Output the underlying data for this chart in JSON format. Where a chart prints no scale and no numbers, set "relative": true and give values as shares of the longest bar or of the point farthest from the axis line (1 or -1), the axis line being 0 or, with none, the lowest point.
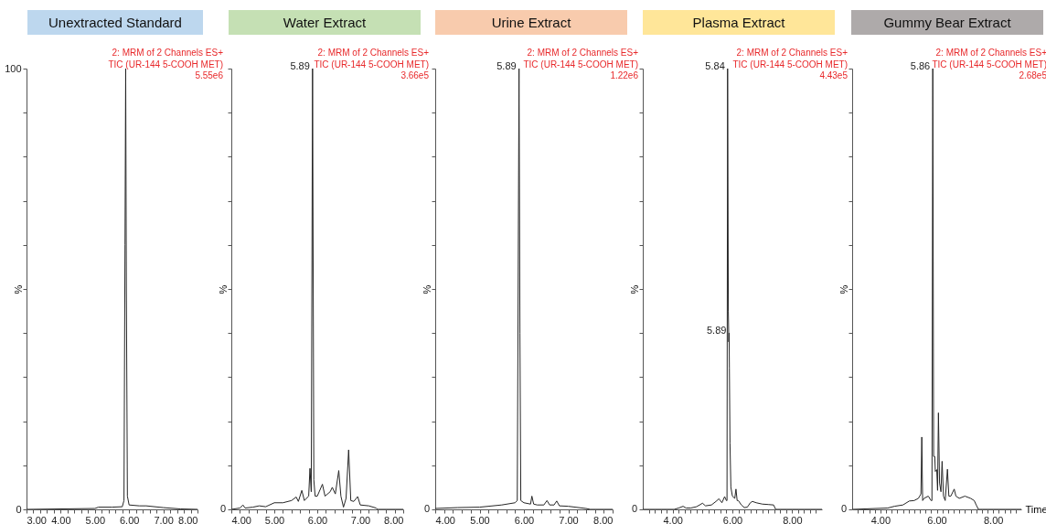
{
  "chart_data": [
    {
      "type": "line",
      "title": "Unextracted Standard",
      "ylabel": "%",
      "xlim": [
        3,
        8
      ],
      "ylim": [
        0,
        100
      ],
      "xticks": [
        {
          "value": 3,
          "label": "3.00"
        },
        {
          "value": 3.2,
          "label": null
        },
        {
          "value": 3.4,
          "label": null
        },
        {
          "value": 3.6,
          "label": null
        },
        {
          "value": 3.8,
          "label": null
        },
        {
          "value": 4,
          "label": "4.00"
        },
        {
          "value": 4.2,
          "label": null
        },
        {
          "value": 4.4,
          "label": null
        },
        {
          "value": 4.6,
          "label": null
        },
        {
          "value": 4.8,
          "label": null
        },
        {
          "value": 5,
          "label": "5.00"
        },
        {
          "value": 5.2,
          "label": null
        },
        {
          "value": 5.4,
          "label": null
        },
        {
          "value": 5.6,
          "label": null
        },
        {
          "value": 5.8,
          "label": null
        },
        {
          "value": 6,
          "label": "6.00"
        },
        {
          "value": 6.2,
          "label": null
        },
        {
          "value": 6.4,
          "label": null
        },
        {
          "value": 6.6,
          "label": null
        },
        {
          "value": 6.8,
          "label": null
        },
        {
          "value": 7,
          "label": "7.00"
        },
        {
          "value": 7.2,
          "label": null
        },
        {
          "value": 7.4,
          "label": null
        },
        {
          "value": 7.6,
          "label": null
        },
        {
          "value": 7.8,
          "label": null
        },
        {
          "value": 8,
          "label": "8.00"
        }
      ],
      "yticks": [
        0,
        {
          "value": 10,
          "label": null
        },
        {
          "value": 20,
          "label": null
        },
        {
          "value": 30,
          "label": null
        },
        {
          "value": 40,
          "label": null
        },
        {
          "value": 50,
          "label": null
        },
        {
          "value": 60,
          "label": null
        },
        {
          "value": 70,
          "label": null
        },
        {
          "value": 80,
          "label": null
        },
        {
          "value": 90,
          "label": null
        },
        100
      ],
      "annotations": [
        "2: MRM of 2 Channels ES+",
        "TIC (UR-144 5-COOH MET)",
        "5.55e6"
      ],
      "series": [
        {
          "color": "#262626",
          "x": [
            3.0,
            5.0,
            5.1,
            5.5,
            5.8,
            5.85,
            5.88,
            5.9,
            5.92,
            5.95,
            6.0,
            6.3,
            6.5,
            7.0,
            7.5,
            8.0
          ],
          "values": [
            0,
            0.2,
            0.5,
            0.5,
            0.6,
            2,
            60,
            100,
            50,
            3,
            1.0,
            0.8,
            0.8,
            0.4,
            0.1,
            0
          ]
        }
      ]
    },
    {
      "type": "line",
      "title": "Water Extract",
      "ylabel": "%",
      "relative": true,
      "xlim": [
        4,
        8
      ],
      "xticks": [
        {
          "value": 4,
          "label": "4.00"
        },
        {
          "value": 4.2,
          "label": null
        },
        {
          "value": 4.4,
          "label": null
        },
        {
          "value": 4.6,
          "label": null
        },
        {
          "value": 4.8,
          "label": null
        },
        {
          "value": 5,
          "label": "5.00"
        },
        {
          "value": 5.2,
          "label": null
        },
        {
          "value": 5.4,
          "label": null
        },
        {
          "value": 5.6,
          "label": null
        },
        {
          "value": 5.8,
          "label": null
        },
        {
          "value": 6,
          "label": "6.00"
        },
        {
          "value": 6.2,
          "label": null
        },
        {
          "value": 6.4,
          "label": null
        },
        {
          "value": 6.6,
          "label": null
        },
        {
          "value": 6.8,
          "label": null
        },
        {
          "value": 7,
          "label": "7.00"
        },
        {
          "value": 7.2,
          "label": null
        },
        {
          "value": 7.4,
          "label": null
        },
        {
          "value": 7.6,
          "label": null
        },
        {
          "value": 7.8,
          "label": null
        },
        {
          "value": 8,
          "label": "8.00"
        }
      ],
      "annotations": [
        "2: MRM of 2 Channels ES+",
        "TIC (UR-144 5-COOH MET)",
        "3.66e5",
        "0",
        {
          "text": "5.89",
          "x": 5.89,
          "y": 1
        }
      ],
      "series": [
        {
          "color": "#262626",
          "x": [
            4.0,
            4.2,
            4.27,
            4.32,
            4.5,
            4.65,
            4.8,
            5.0,
            5.2,
            5.4,
            5.51,
            5.56,
            5.64,
            5.7,
            5.8,
            5.83,
            5.86,
            5.89,
            5.92,
            5.95,
            6.0,
            6.12,
            6.18,
            6.3,
            6.35,
            6.42,
            6.5,
            6.55,
            6.61,
            6.67,
            6.73,
            6.78,
            6.85,
            6.94,
            7.0,
            7.2,
            7.37,
            7.4,
            8.0
          ],
          "values": [
            0,
            0.003,
            0.01,
            0.003,
            0.005,
            0.008,
            0.006,
            0.015,
            0.015,
            0.02,
            0.028,
            0.018,
            0.043,
            0.02,
            0.03,
            0.093,
            0.04,
            1,
            0.067,
            0.03,
            0.03,
            0.057,
            0.03,
            0.04,
            0.05,
            0.035,
            0.088,
            0.03,
            0.005,
            0.025,
            0.135,
            0.02,
            0.018,
            0.029,
            0.01,
            0.008,
            0.003,
            0,
            0
          ]
        }
      ]
    },
    {
      "type": "line",
      "title": "Urine Extract",
      "ylabel": "%",
      "relative": true,
      "xlim": [
        4,
        8
      ],
      "xticks": [
        {
          "value": 4,
          "label": "4.00"
        },
        {
          "value": 4.2,
          "label": null
        },
        {
          "value": 4.4,
          "label": null
        },
        {
          "value": 4.6,
          "label": null
        },
        {
          "value": 4.8,
          "label": null
        },
        {
          "value": 5,
          "label": "5.00"
        },
        {
          "value": 5.2,
          "label": null
        },
        {
          "value": 5.4,
          "label": null
        },
        {
          "value": 5.6,
          "label": null
        },
        {
          "value": 5.8,
          "label": null
        },
        {
          "value": 6,
          "label": "6.00"
        },
        {
          "value": 6.2,
          "label": null
        },
        {
          "value": 6.4,
          "label": null
        },
        {
          "value": 6.6,
          "label": null
        },
        {
          "value": 6.8,
          "label": null
        },
        {
          "value": 7,
          "label": "7.00"
        },
        {
          "value": 7.2,
          "label": null
        },
        {
          "value": 7.4,
          "label": null
        },
        {
          "value": 7.6,
          "label": null
        },
        {
          "value": 7.8,
          "label": null
        },
        {
          "value": 8,
          "label": "8.00"
        }
      ],
      "annotations": [
        "2: MRM of 2 Channels ES+",
        "TIC (UR-144 5-COOH MET)",
        "1.22e6",
        "0",
        {
          "text": "5.89",
          "x": 5.89,
          "y": 1
        }
      ],
      "series": [
        {
          "color": "#262626",
          "x": [
            4.0,
            4.5,
            5.0,
            5.5,
            5.8,
            5.85,
            5.87,
            5.89,
            5.91,
            5.93,
            6.0,
            6.15,
            6.18,
            6.22,
            6.3,
            6.45,
            6.52,
            6.58,
            6.68,
            6.74,
            6.8,
            7.0,
            7.4,
            7.5,
            8.0
          ],
          "values": [
            0.002,
            0.004,
            0.005,
            0.01,
            0.015,
            0.02,
            0.5,
            1,
            0.4,
            0.02,
            0.015,
            0.012,
            0.03,
            0.012,
            0.01,
            0.01,
            0.02,
            0.01,
            0.01,
            0.019,
            0.008,
            0.007,
            0.002,
            0,
            0
          ]
        }
      ]
    },
    {
      "type": "line",
      "title": "Plasma Extract",
      "ylabel": "%",
      "relative": true,
      "xlim": [
        3,
        9
      ],
      "xticks": [
        {
          "value": 3.2,
          "label": null
        },
        {
          "value": 3.4,
          "label": null
        },
        {
          "value": 3.6,
          "label": null
        },
        {
          "value": 3.8,
          "label": null
        },
        {
          "value": 4,
          "label": "4.00"
        },
        {
          "value": 4.2,
          "label": null
        },
        {
          "value": 4.4,
          "label": null
        },
        {
          "value": 4.6,
          "label": null
        },
        {
          "value": 4.8,
          "label": null
        },
        {
          "value": 5,
          "label": null
        },
        {
          "value": 5.2,
          "label": null
        },
        {
          "value": 5.4,
          "label": null
        },
        {
          "value": 5.6,
          "label": null
        },
        {
          "value": 5.8,
          "label": null
        },
        {
          "value": 6,
          "label": "6.00"
        },
        {
          "value": 6.2,
          "label": null
        },
        {
          "value": 6.4,
          "label": null
        },
        {
          "value": 6.6,
          "label": null
        },
        {
          "value": 6.8,
          "label": null
        },
        {
          "value": 7,
          "label": null
        },
        {
          "value": 7.2,
          "label": null
        },
        {
          "value": 7.4,
          "label": null
        },
        {
          "value": 7.6,
          "label": null
        },
        {
          "value": 7.8,
          "label": null
        },
        {
          "value": 8,
          "label": "8.00"
        },
        {
          "value": 8.2,
          "label": null
        },
        {
          "value": 8.4,
          "label": null
        },
        {
          "value": 8.6,
          "label": null
        },
        {
          "value": 8.8,
          "label": null
        }
      ],
      "annotations": [
        "2: MRM of 2 Channels ES+",
        "TIC (UR-144 5-COOH MET)",
        "4.43e5",
        "0",
        {
          "text": "5.84",
          "x": 5.84,
          "y": 1
        },
        {
          "text": "5.89",
          "x": 5.89,
          "y": 0.4
        }
      ],
      "series": [
        {
          "color": "#262626",
          "x": [
            3.0,
            4.05,
            4.2,
            4.35,
            4.45,
            4.6,
            4.8,
            5.0,
            5.1,
            5.3,
            5.45,
            5.55,
            5.65,
            5.74,
            5.8,
            5.82,
            5.84,
            5.865,
            5.88,
            5.89,
            5.9,
            5.92,
            5.95,
            6.0,
            6.08,
            6.12,
            6.16,
            6.2,
            6.3,
            6.4,
            6.5,
            6.6,
            6.67,
            6.8,
            7.0,
            7.2,
            7.38,
            7.45,
            9.0
          ],
          "values": [
            0,
            0,
            0.003,
            0.007,
            0.003,
            0.003,
            0.006,
            0.014,
            0.008,
            0.01,
            0.018,
            0.024,
            0.015,
            0.029,
            0.02,
            0.02,
            1,
            0.45,
            0.38,
            0.4,
            0.32,
            0.15,
            0.05,
            0.03,
            0.025,
            0.046,
            0.02,
            0.02,
            0.01,
            0.004,
            0.005,
            0.015,
            0.018,
            0.015,
            0.012,
            0.011,
            0.01,
            0,
            0
          ]
        }
      ]
    },
    {
      "type": "line",
      "title": "Gummy Bear Extract",
      "ylabel": "%",
      "xlabel": "Time",
      "relative": true,
      "xlim": [
        3,
        9
      ],
      "xticks": [
        {
          "value": 3.2,
          "label": null
        },
        {
          "value": 3.4,
          "label": null
        },
        {
          "value": 3.6,
          "label": null
        },
        {
          "value": 3.8,
          "label": null
        },
        {
          "value": 4,
          "label": "4.00"
        },
        {
          "value": 4.2,
          "label": null
        },
        {
          "value": 4.4,
          "label": null
        },
        {
          "value": 4.6,
          "label": null
        },
        {
          "value": 4.8,
          "label": null
        },
        {
          "value": 5,
          "label": null
        },
        {
          "value": 5.2,
          "label": null
        },
        {
          "value": 5.4,
          "label": null
        },
        {
          "value": 5.6,
          "label": null
        },
        {
          "value": 5.8,
          "label": null
        },
        {
          "value": 6,
          "label": "6.00"
        },
        {
          "value": 6.2,
          "label": null
        },
        {
          "value": 6.4,
          "label": null
        },
        {
          "value": 6.6,
          "label": null
        },
        {
          "value": 6.8,
          "label": null
        },
        {
          "value": 7,
          "label": null
        },
        {
          "value": 7.2,
          "label": null
        },
        {
          "value": 7.4,
          "label": null
        },
        {
          "value": 7.6,
          "label": null
        },
        {
          "value": 7.8,
          "label": null
        },
        {
          "value": 8,
          "label": "8.00"
        },
        {
          "value": 8.2,
          "label": null
        },
        {
          "value": 8.4,
          "label": null
        },
        {
          "value": 8.6,
          "label": null
        },
        {
          "value": 8.8,
          "label": null
        }
      ],
      "annotations": [
        "2: MRM of 2 Channels ES+",
        "TIC (UR-144 5-COOH MET)",
        "2.68e5",
        "0",
        {
          "text": "5.86",
          "x": 5.86,
          "y": 1
        }
      ],
      "series": [
        {
          "color": "#262626",
          "x": [
            3.0,
            4.26,
            4.5,
            4.8,
            5.03,
            5.2,
            5.35,
            5.44,
            5.47,
            5.5,
            5.55,
            5.7,
            5.8,
            5.83,
            5.86,
            5.89,
            5.93,
            5.95,
            6.0,
            6.03,
            6.06,
            6.1,
            6.15,
            6.19,
            6.24,
            6.3,
            6.38,
            6.43,
            6.5,
            6.62,
            6.68,
            6.8,
            7.0,
            7.2,
            7.33,
            7.4,
            7.48,
            9.0
          ],
          "values": [
            0,
            0.003,
            0.007,
            0.01,
            0.019,
            0.02,
            0.025,
            0.035,
            0.164,
            0.02,
            0.025,
            0.03,
            0.02,
            0.02,
            1,
            0.12,
            0.12,
            0.086,
            0.09,
            0.043,
            0.219,
            0.06,
            0.04,
            0.109,
            0.03,
            0.02,
            0.091,
            0.03,
            0.03,
            0.046,
            0.03,
            0.025,
            0.03,
            0.025,
            0.02,
            0.01,
            0,
            0
          ]
        }
      ]
    }
  ]
}
